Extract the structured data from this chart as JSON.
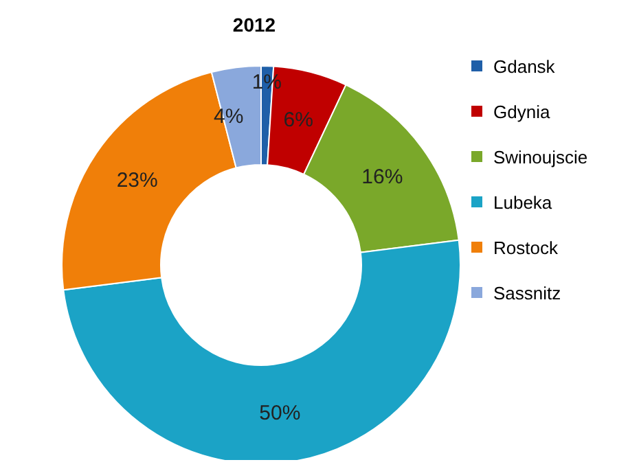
{
  "chart_data": {
    "type": "donut",
    "title": "2012",
    "categories": [
      "Gdansk",
      "Gdynia",
      "Swinoujscie",
      "Lubeka",
      "Rostock",
      "Sassnitz"
    ],
    "values": [
      1,
      6,
      16,
      50,
      23,
      4
    ],
    "colors": [
      "#1f5fa8",
      "#c00000",
      "#7aa82a",
      "#1ba3c6",
      "#f07f09",
      "#8aa8dc"
    ],
    "value_labels": [
      "1%",
      "6%",
      "16%",
      "50%",
      "23%",
      "4%"
    ],
    "legend": "right"
  }
}
